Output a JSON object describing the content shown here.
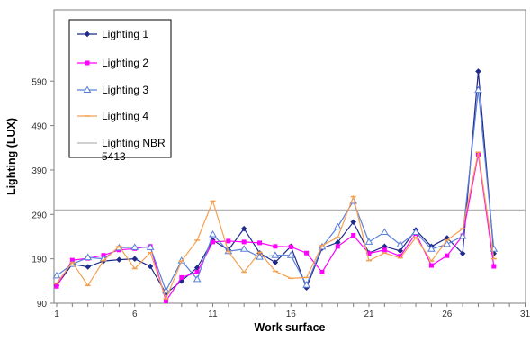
{
  "chart_data": {
    "type": "line",
    "title": "",
    "xlabel": "Work surface",
    "ylabel": "Lighting (LUX)",
    "xlim": [
      1,
      31
    ],
    "ylim": [
      90,
      620
    ],
    "x_ticks": [
      1,
      6,
      11,
      16,
      21,
      26,
      31
    ],
    "y_ticks": [
      90,
      190,
      290,
      390,
      490,
      590
    ],
    "grid": false,
    "legend_position": "top-left",
    "x": [
      1,
      2,
      3,
      4,
      5,
      6,
      7,
      8,
      9,
      10,
      11,
      12,
      13,
      14,
      15,
      16,
      17,
      18,
      19,
      20,
      21,
      22,
      23,
      24,
      25,
      26,
      27,
      28,
      29
    ],
    "series": [
      {
        "name": "Lighting 1",
        "color": "#1f2a8a",
        "marker": "diamond",
        "values": [
          130,
          178,
          172,
          185,
          188,
          190,
          173,
          112,
          140,
          170,
          232,
          210,
          258,
          203,
          182,
          218,
          125,
          214,
          227,
          273,
          203,
          218,
          208,
          255,
          218,
          237,
          202,
          612,
          202
        ]
      },
      {
        "name": "Lighting 2",
        "color": "#ff00ff",
        "marker": "square",
        "values": [
          128,
          187,
          191,
          198,
          210,
          213,
          218,
          95,
          148,
          160,
          228,
          230,
          228,
          226,
          218,
          217,
          203,
          160,
          218,
          243,
          202,
          210,
          196,
          247,
          175,
          197,
          242,
          425,
          173
        ]
      },
      {
        "name": "Lighting 3",
        "color": "#5a7fd9",
        "marker": "triangle",
        "values": [
          152,
          178,
          193,
          190,
          215,
          216,
          216,
          118,
          186,
          144,
          245,
          207,
          212,
          194,
          198,
          198,
          131,
          217,
          262,
          320,
          228,
          250,
          222,
          250,
          212,
          223,
          241,
          570,
          212
        ]
      },
      {
        "name": "Lighting 4",
        "color": "#f5a050",
        "marker": "dash",
        "values": [
          135,
          182,
          130,
          186,
          218,
          168,
          204,
          100,
          185,
          232,
          320,
          206,
          160,
          205,
          162,
          146,
          148,
          220,
          238,
          330,
          186,
          203,
          192,
          238,
          185,
          232,
          258,
          430,
          190
        ]
      },
      {
        "name": "Lighting NBR 5413",
        "color": "#b3b3b3",
        "marker": "none",
        "values": [
          300,
          300,
          300,
          300,
          300,
          300,
          300,
          300,
          300,
          300,
          300,
          300,
          300,
          300,
          300,
          300,
          300,
          300,
          300,
          300,
          300,
          300,
          300,
          300,
          300,
          300,
          300,
          300,
          300
        ]
      }
    ]
  }
}
